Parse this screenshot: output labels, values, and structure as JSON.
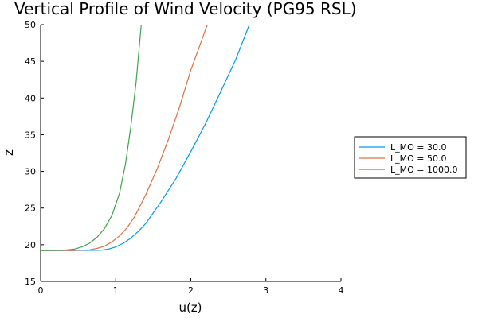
{
  "chart_data": {
    "type": "line",
    "title": "Vertical Profile of Wind Velocity (PG95 RSL)",
    "xlabel": "u(z)",
    "ylabel": "z",
    "xlim": [
      0,
      4
    ],
    "ylim": [
      15,
      50
    ],
    "xticks": [
      "0",
      "1",
      "2",
      "3",
      "4"
    ],
    "yticks": [
      "15",
      "20",
      "25",
      "30",
      "35",
      "40",
      "45",
      "50"
    ],
    "grid": false,
    "legend_position": "right",
    "series": [
      {
        "name": "L_MO = 30.0",
        "color": "#009af9",
        "x": [
          0,
          0.4,
          0.8,
          0.9,
          1.0,
          1.1,
          1.2,
          1.3,
          1.4,
          1.6,
          1.8,
          2.0,
          2.2,
          2.4,
          2.6,
          2.78
        ],
        "y": [
          19.2,
          19.2,
          19.25,
          19.4,
          19.7,
          20.2,
          20.9,
          21.8,
          22.9,
          25.8,
          29.0,
          32.7,
          36.6,
          40.9,
          45.3,
          50.0
        ]
      },
      {
        "name": "L_MO = 50.0",
        "color": "#e26f46",
        "x": [
          0,
          0.4,
          0.65,
          0.75,
          0.85,
          0.95,
          1.05,
          1.15,
          1.25,
          1.4,
          1.55,
          1.7,
          1.85,
          2.0,
          2.1,
          2.22
        ],
        "y": [
          19.2,
          19.2,
          19.3,
          19.5,
          19.8,
          20.4,
          21.2,
          22.3,
          23.8,
          26.8,
          30.3,
          34.3,
          38.8,
          43.8,
          46.6,
          50.0
        ]
      },
      {
        "name": "L_MO = 1000.0",
        "color": "#3da44d",
        "x": [
          0,
          0.3,
          0.45,
          0.55,
          0.65,
          0.75,
          0.85,
          0.95,
          1.05,
          1.13,
          1.2,
          1.27,
          1.34
        ],
        "y": [
          19.2,
          19.25,
          19.4,
          19.7,
          20.2,
          21.0,
          22.2,
          24.0,
          27.0,
          31.0,
          36.0,
          42.0,
          50.0
        ]
      }
    ]
  }
}
